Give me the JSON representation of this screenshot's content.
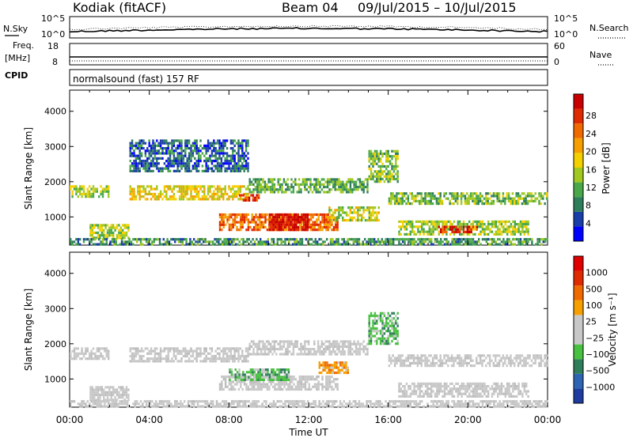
{
  "header": {
    "station": "Kodiak (fitACF)",
    "beam": "Beam 04",
    "date_range": "09/Jul/2015 – 10/Jul/2015"
  },
  "noise_panel": {
    "left_label": "N.Sky",
    "right_label": "N.Search",
    "left_ticks": [
      "10^5",
      "10^0"
    ],
    "right_ticks": [
      "10^5",
      "10^0"
    ]
  },
  "freq_panel": {
    "left_label_1": "Freq.",
    "left_label_2": "[MHz]",
    "right_label": "Nave",
    "left_ticks": [
      "18",
      "8"
    ],
    "right_ticks": [
      "60",
      "0"
    ],
    "cpid_label": "CPID"
  },
  "cpid_panel": {
    "text": "normalsound (fast) 157 RF"
  },
  "chart_data": [
    {
      "type": "heatmap",
      "title": "",
      "xlabel": "Time UT",
      "ylabel": "Slant Range [km]",
      "x_ticks": [
        "00:00",
        "04:00",
        "08:00",
        "12:00",
        "16:00",
        "20:00",
        "00:00"
      ],
      "xlim_hours": [
        0,
        24
      ],
      "y_ticks": [
        1000,
        2000,
        3000,
        4000
      ],
      "ylim": [
        200,
        4600
      ],
      "colorbar": {
        "label": "Power [dB]",
        "ticks": [
          "4",
          "8",
          "12",
          "16",
          "20",
          "24",
          "28"
        ],
        "colors": [
          "#0000ff",
          "#1a3ea8",
          "#2e7d5b",
          "#4aa84a",
          "#a0c820",
          "#f5d000",
          "#f5a000",
          "#f06a00",
          "#e02a00",
          "#c80000"
        ]
      },
      "echo_regions": [
        {
          "t0": 0.0,
          "t1": 2.0,
          "r0": 1550,
          "r1": 1900,
          "level": 0.45
        },
        {
          "t0": 1.0,
          "t1": 3.0,
          "r0": 400,
          "r1": 800,
          "level": 0.45
        },
        {
          "t0": 3.0,
          "t1": 9.0,
          "r0": 1500,
          "r1": 1900,
          "level": 0.55
        },
        {
          "t0": 8.5,
          "t1": 9.5,
          "r0": 1450,
          "r1": 1650,
          "level": 0.85
        },
        {
          "t0": 9.0,
          "t1": 15.0,
          "r0": 1700,
          "r1": 2100,
          "level": 0.35
        },
        {
          "t0": 7.5,
          "t1": 13.5,
          "r0": 600,
          "r1": 1100,
          "level": 0.75
        },
        {
          "t0": 10.0,
          "t1": 12.0,
          "r0": 600,
          "r1": 1100,
          "level": 0.95
        },
        {
          "t0": 13.0,
          "t1": 15.5,
          "r0": 900,
          "r1": 1300,
          "level": 0.5
        },
        {
          "t0": 15.0,
          "t1": 16.5,
          "r0": 2000,
          "r1": 2900,
          "level": 0.4
        },
        {
          "t0": 16.0,
          "t1": 24.0,
          "r0": 1350,
          "r1": 1700,
          "level": 0.4
        },
        {
          "t0": 16.5,
          "t1": 23.0,
          "r0": 500,
          "r1": 900,
          "level": 0.45
        },
        {
          "t0": 18.5,
          "t1": 20.5,
          "r0": 550,
          "r1": 750,
          "level": 0.9
        },
        {
          "t0": 3.0,
          "t1": 9.0,
          "r0": 2300,
          "r1": 3200,
          "level": 0.2
        },
        {
          "t0": 0.0,
          "t1": 24.0,
          "r0": 200,
          "r1": 400,
          "level": 0.3
        }
      ]
    },
    {
      "type": "heatmap",
      "title": "",
      "xlabel": "Time UT",
      "ylabel": "Slant Range [km]",
      "x_ticks": [
        "00:00",
        "04:00",
        "08:00",
        "12:00",
        "16:00",
        "20:00",
        "00:00"
      ],
      "xlim_hours": [
        0,
        24
      ],
      "y_ticks": [
        1000,
        2000,
        3000,
        4000
      ],
      "ylim": [
        200,
        4600
      ],
      "colorbar": {
        "label": "Velocity [m s⁻¹]",
        "ticks": [
          "1000",
          "500",
          "100",
          "25",
          "−25",
          "−100",
          "−500",
          "−1000"
        ],
        "colors": [
          "#1e3ca0",
          "#2e64b4",
          "#2e7d5b",
          "#48c040",
          "#c8c8c8",
          "#c8c8c8",
          "#f5a000",
          "#f06a00",
          "#e02a00",
          "#e00000"
        ]
      },
      "echo_regions": [
        {
          "t0": 0.0,
          "t1": 2.0,
          "r0": 1550,
          "r1": 1900,
          "color": "gray"
        },
        {
          "t0": 1.0,
          "t1": 3.0,
          "r0": 400,
          "r1": 800,
          "color": "gray"
        },
        {
          "t0": 3.0,
          "t1": 9.0,
          "r0": 1500,
          "r1": 1900,
          "color": "gray"
        },
        {
          "t0": 9.0,
          "t1": 15.0,
          "r0": 1700,
          "r1": 2100,
          "color": "gray"
        },
        {
          "t0": 7.5,
          "t1": 13.5,
          "r0": 700,
          "r1": 1100,
          "color": "gray"
        },
        {
          "t0": 8.0,
          "t1": 11.0,
          "r0": 1000,
          "r1": 1300,
          "color": "green"
        },
        {
          "t0": 12.5,
          "t1": 14.0,
          "r0": 1200,
          "r1": 1500,
          "color": "orange"
        },
        {
          "t0": 15.0,
          "t1": 16.5,
          "r0": 2000,
          "r1": 2900,
          "color": "green"
        },
        {
          "t0": 16.0,
          "t1": 24.0,
          "r0": 1400,
          "r1": 1700,
          "color": "gray"
        },
        {
          "t0": 16.5,
          "t1": 23.0,
          "r0": 500,
          "r1": 900,
          "color": "gray"
        },
        {
          "t0": 0.0,
          "t1": 24.0,
          "r0": 200,
          "r1": 400,
          "color": "gray"
        }
      ]
    }
  ]
}
